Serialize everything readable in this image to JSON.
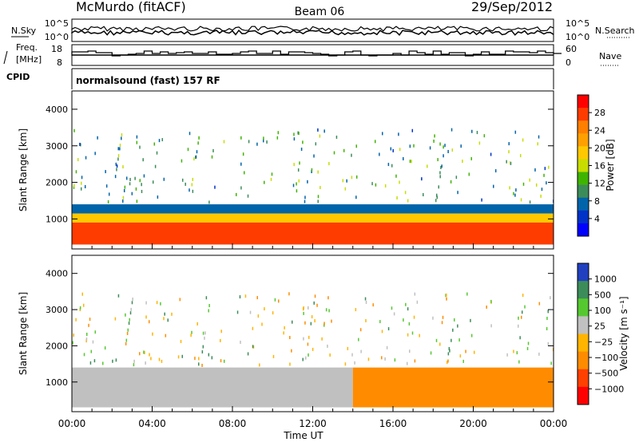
{
  "header": {
    "station": "McMurdo (fitACF)",
    "beam": "Beam 06",
    "date": "29/Sep/2012"
  },
  "labels": {
    "nsky": "N.Sky",
    "nsearch": "N.Search",
    "freq_line1": "Freq.",
    "freq_line2": "[MHz]",
    "nave": "Nave",
    "cpid": "CPID",
    "cpid_value": "normalsound (fast) 157 RF",
    "ylabel": "Slant Range [km]",
    "xlabel": "Time UT",
    "power_label": "Power [dB]",
    "velocity_label": "Velocity [m s⁻¹]"
  },
  "noise_panel": {
    "left_ticks": [
      "10^5",
      "10^0"
    ],
    "right_ticks": [
      "10^5",
      "10^0"
    ]
  },
  "freq_panel": {
    "left_ticks": [
      "18",
      "8"
    ],
    "right_ticks": [
      "60",
      "0"
    ]
  },
  "power_colorbar": {
    "ticks": [
      "28",
      "24",
      "20",
      "16",
      "12",
      "8",
      "4"
    ],
    "colors": [
      "#ff0000",
      "#ff3c00",
      "#ff7f00",
      "#ffa000",
      "#ffc800",
      "#c8dc00",
      "#3fb400",
      "#3c8c5a",
      "#0064aa",
      "#0032c8",
      "#0000ff"
    ]
  },
  "velocity_colorbar": {
    "ticks": [
      "1000",
      "500",
      "100",
      "25",
      "−25",
      "−100",
      "−500",
      "−1000"
    ],
    "colors": [
      "#2040c0",
      "#3c8c5a",
      "#55c830",
      "#c0c0c0",
      "#ffb400",
      "#ff8c00",
      "#ff4000",
      "#ff0000"
    ]
  },
  "chart_data": {
    "type": "heatmap",
    "title": "McMurdo (fitACF) Beam 06 29/Sep/2012",
    "xlabel": "Time UT",
    "ylabel": "Slant Range [km]",
    "x_ticks": [
      "00:00",
      "04:00",
      "08:00",
      "12:00",
      "16:00",
      "20:00",
      "00:00"
    ],
    "xlim_hours": [
      0,
      24
    ],
    "y_ticks": [
      1000,
      2000,
      3000,
      4000
    ],
    "ylim_km": [
      180,
      4500
    ],
    "panels": [
      {
        "name": "Power [dB]",
        "scale": [
          0,
          30
        ],
        "colorbar_ticks": [
          28,
          24,
          20,
          16,
          12,
          8,
          4
        ],
        "description_bands": [
          {
            "from_hour": 0,
            "to_hour": 24,
            "range_km": [
              300,
              900
            ],
            "power_db": 28
          },
          {
            "from_hour": 0,
            "to_hour": 24,
            "range_km": [
              900,
              1150
            ],
            "power_db": 18
          },
          {
            "from_hour": 0,
            "to_hour": 24,
            "range_km": [
              1150,
              1400
            ],
            "power_db": 6
          }
        ]
      },
      {
        "name": "Velocity [m s-1]",
        "scale": [
          -1000,
          1000
        ],
        "colorbar_ticks": [
          1000,
          500,
          100,
          25,
          -25,
          -100,
          -500,
          -1000
        ],
        "description_bands": [
          {
            "from_hour": 0,
            "to_hour": 14,
            "range_km": [
              300,
              1400
            ],
            "velocity": 10
          },
          {
            "from_hour": 14,
            "to_hour": 24,
            "range_km": [
              300,
              1400
            ],
            "velocity": -150
          }
        ]
      }
    ]
  }
}
